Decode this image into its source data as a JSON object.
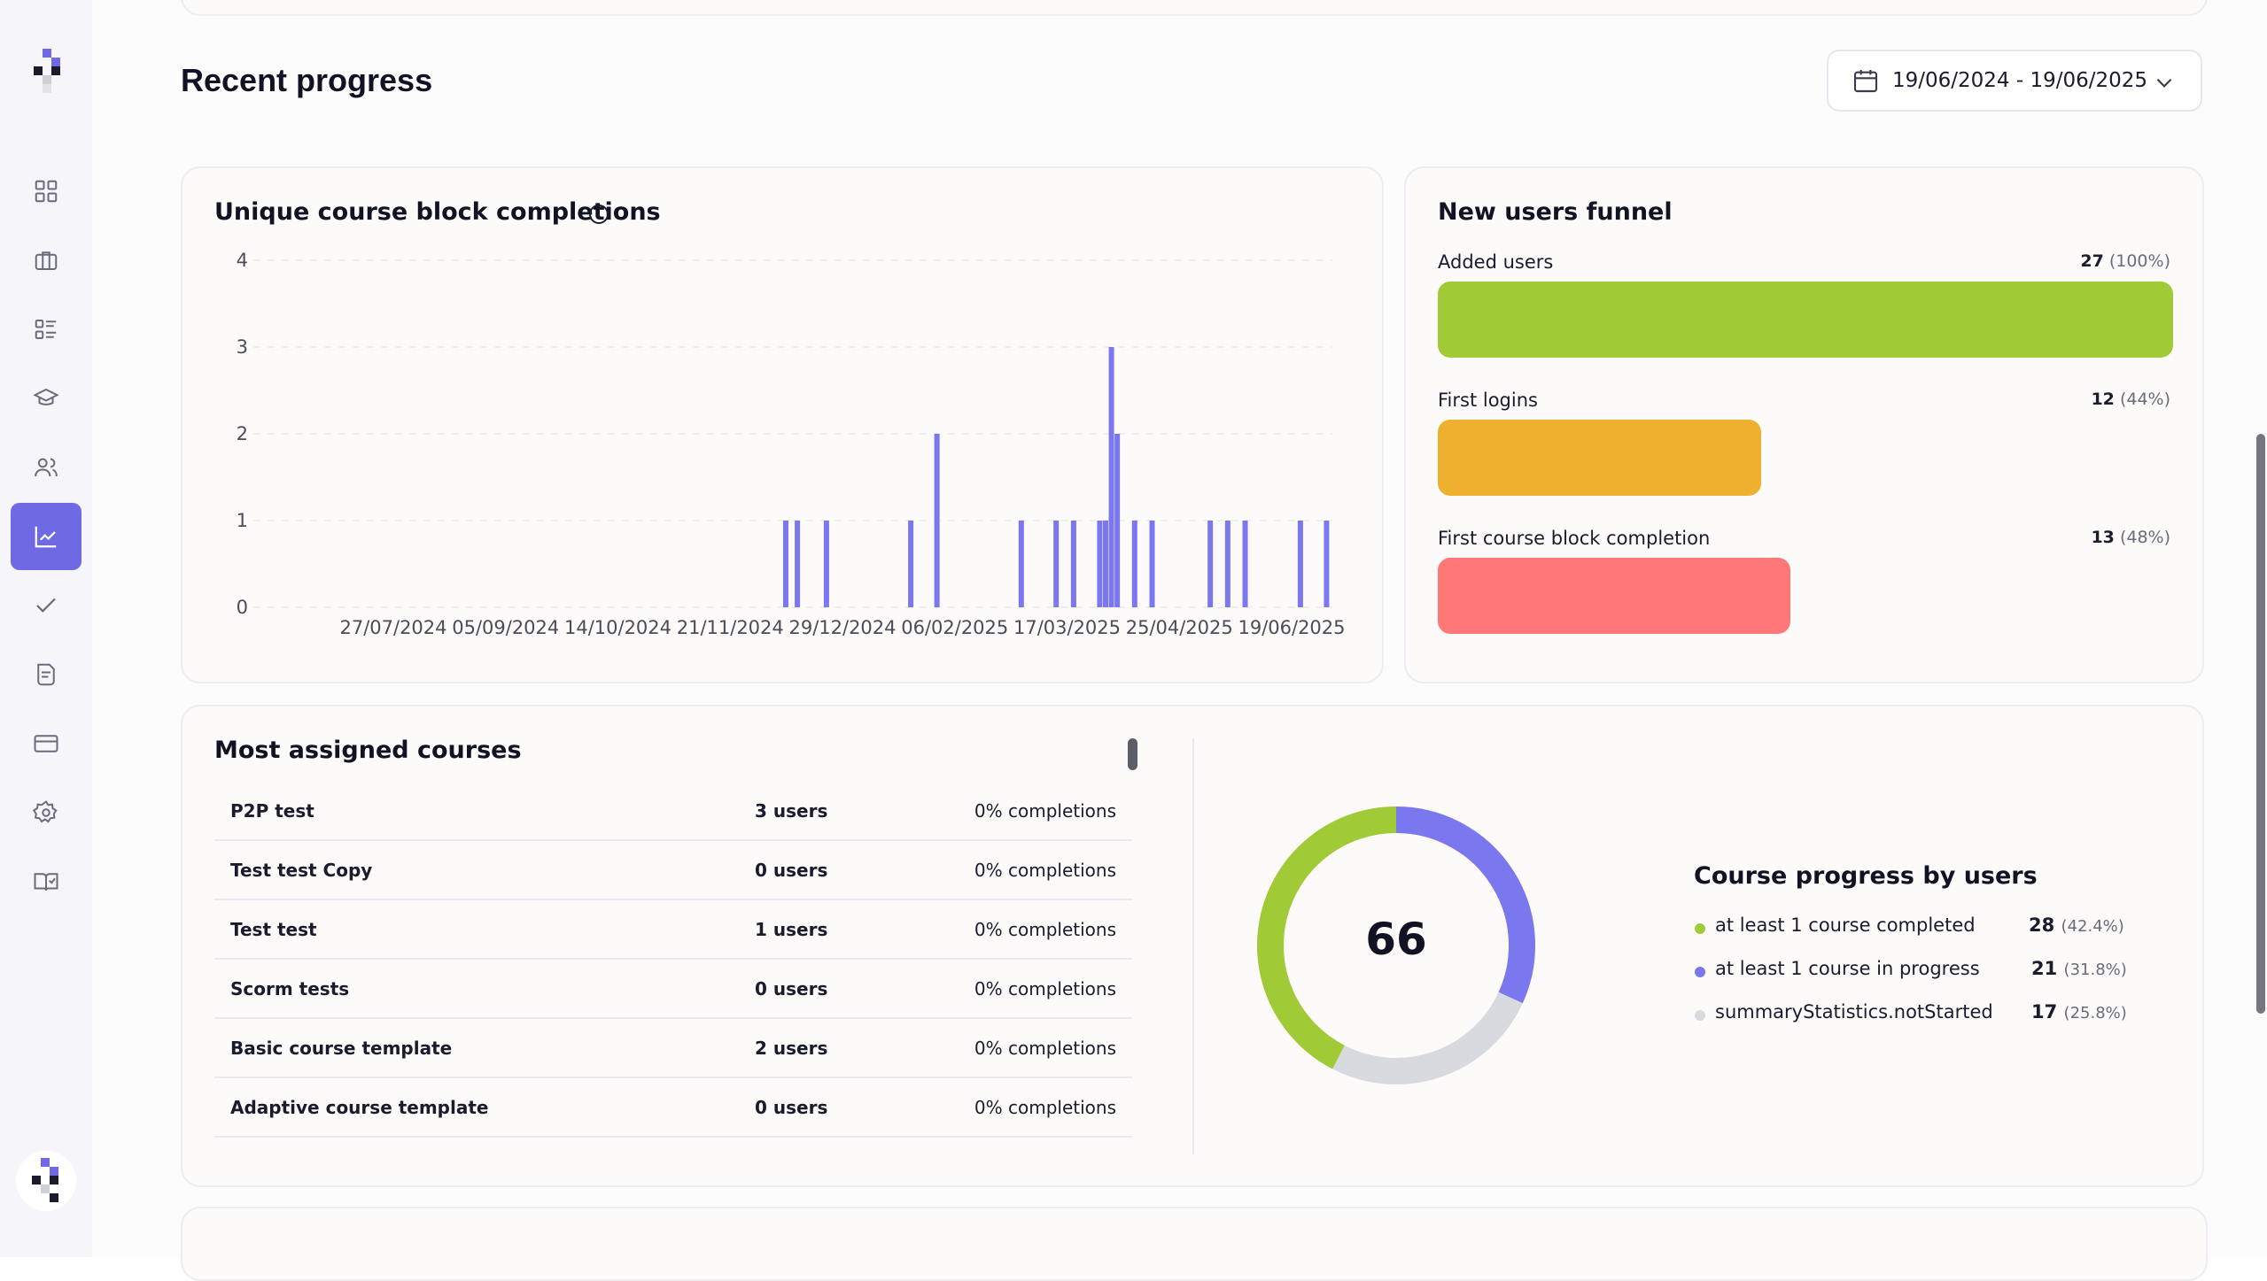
{
  "page": {
    "title": "Recent progress"
  },
  "date_range": {
    "label": "19/06/2024 - 19/06/2025"
  },
  "sidebar": {
    "items": [
      {
        "icon": "dashboard-icon"
      },
      {
        "icon": "briefcase-icon"
      },
      {
        "icon": "list-icon"
      },
      {
        "icon": "graduation-cap-icon"
      },
      {
        "icon": "users-icon"
      },
      {
        "icon": "chart-icon",
        "active": true
      },
      {
        "icon": "check-icon"
      },
      {
        "icon": "document-icon"
      },
      {
        "icon": "credit-card-icon"
      },
      {
        "icon": "settings-icon"
      },
      {
        "icon": "book-check-icon"
      }
    ]
  },
  "completions_card": {
    "title": "Unique course block completions"
  },
  "funnel": {
    "title": "New users funnel",
    "items": [
      {
        "label": "Added users",
        "count": "27",
        "percent": "(100%)",
        "value": 1.0,
        "color": "#a0ca36"
      },
      {
        "label": "First logins",
        "count": "12",
        "percent": "(44%)",
        "value": 0.44,
        "color": "#efb02f"
      },
      {
        "label": "First course block completion",
        "count": "13",
        "percent": "(48%)",
        "value": 0.48,
        "color": "#ff7878"
      }
    ]
  },
  "courses": {
    "title": "Most assigned courses",
    "rows": [
      {
        "name": "P2P test",
        "users": "3 users",
        "completions": "0% completions"
      },
      {
        "name": "Test test Copy",
        "users": "0 users",
        "completions": "0% completions"
      },
      {
        "name": "Test test",
        "users": "1 users",
        "completions": "0% completions"
      },
      {
        "name": "Scorm tests",
        "users": "0 users",
        "completions": "0% completions"
      },
      {
        "name": "Basic course template",
        "users": "2 users",
        "completions": "0% completions"
      },
      {
        "name": "Adaptive course template",
        "users": "0 users",
        "completions": "0% completions"
      }
    ]
  },
  "progress": {
    "title": "Course progress by users",
    "total": "66",
    "items": [
      {
        "label": "at least 1 course completed",
        "count": "28",
        "percent": "(42.4%)",
        "color": "#a0ca36"
      },
      {
        "label": "at least 1 course in progress",
        "count": "21",
        "percent": "(31.8%)",
        "color": "#7b78ef"
      },
      {
        "label": "summaryStatistics.notStarted",
        "count": "17",
        "percent": "(25.8%)",
        "color": "#d9dae0"
      }
    ]
  },
  "chart_data": {
    "type": "bar",
    "title": "Unique course block completions",
    "x_ticks": [
      "27/07/2024",
      "05/09/2024",
      "14/10/2024",
      "21/11/2024",
      "29/12/2024",
      "06/02/2025",
      "17/03/2025",
      "25/04/2025",
      "19/06/2025"
    ],
    "x_range": [
      "19/06/2024",
      "19/06/2025"
    ],
    "y_ticks": [
      0,
      1,
      2,
      3,
      4
    ],
    "ylim": [
      0,
      4
    ],
    "grid": true,
    "color": "#7b78ef",
    "bars": [
      {
        "x": "13/12/2024",
        "y": 1
      },
      {
        "x": "17/12/2024",
        "y": 1
      },
      {
        "x": "27/12/2024",
        "y": 1
      },
      {
        "x": "25/01/2025",
        "y": 1
      },
      {
        "x": "03/02/2025",
        "y": 2
      },
      {
        "x": "04/03/2025",
        "y": 1
      },
      {
        "x": "16/03/2025",
        "y": 1
      },
      {
        "x": "22/03/2025",
        "y": 1
      },
      {
        "x": "31/03/2025",
        "y": 1
      },
      {
        "x": "02/04/2025",
        "y": 1
      },
      {
        "x": "04/04/2025",
        "y": 3
      },
      {
        "x": "06/04/2025",
        "y": 2
      },
      {
        "x": "12/04/2025",
        "y": 1
      },
      {
        "x": "18/04/2025",
        "y": 1
      },
      {
        "x": "08/05/2025",
        "y": 1
      },
      {
        "x": "14/05/2025",
        "y": 1
      },
      {
        "x": "20/05/2025",
        "y": 1
      },
      {
        "x": "08/06/2025",
        "y": 1
      },
      {
        "x": "17/06/2025",
        "y": 1
      }
    ]
  }
}
